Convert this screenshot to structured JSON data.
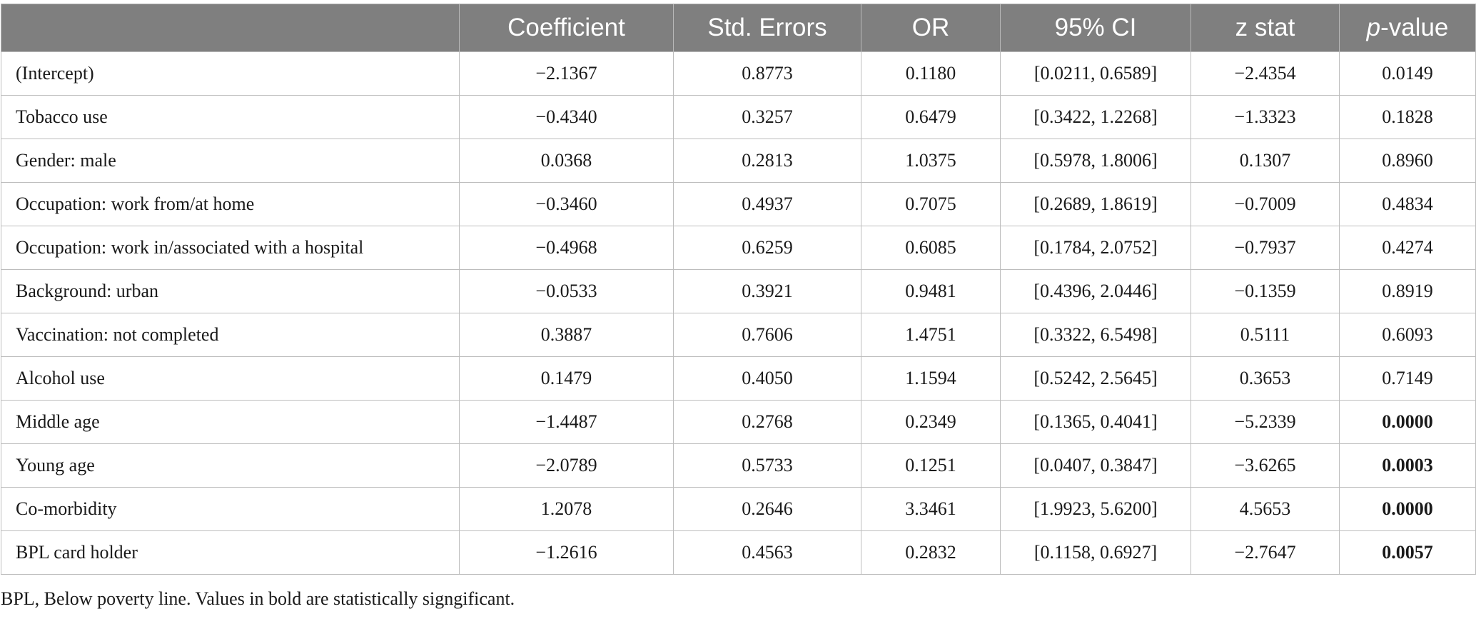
{
  "table": {
    "headers": {
      "variable": "",
      "coefficient": "Coefficient",
      "std_errors": "Std. Errors",
      "or": "OR",
      "ci": "95% CI",
      "z_stat": "z stat",
      "p_value_italic": "p",
      "p_value_rest": "-value"
    },
    "rows": [
      {
        "variable": "(Intercept)",
        "coefficient": "−2.1367",
        "std_errors": "0.8773",
        "or": "0.1180",
        "ci": "[0.0211, 0.6589]",
        "z_stat": "−2.4354",
        "p_value": "0.0149",
        "significant": false
      },
      {
        "variable": "Tobacco use",
        "coefficient": "−0.4340",
        "std_errors": "0.3257",
        "or": "0.6479",
        "ci": "[0.3422, 1.2268]",
        "z_stat": "−1.3323",
        "p_value": "0.1828",
        "significant": false
      },
      {
        "variable": "Gender: male",
        "coefficient": "0.0368",
        "std_errors": "0.2813",
        "or": "1.0375",
        "ci": "[0.5978, 1.8006]",
        "z_stat": "0.1307",
        "p_value": "0.8960",
        "significant": false
      },
      {
        "variable": "Occupation: work from/at home",
        "coefficient": "−0.3460",
        "std_errors": "0.4937",
        "or": "0.7075",
        "ci": "[0.2689, 1.8619]",
        "z_stat": "−0.7009",
        "p_value": "0.4834",
        "significant": false
      },
      {
        "variable": "Occupation: work in/associated with a hospital",
        "coefficient": "−0.4968",
        "std_errors": "0.6259",
        "or": "0.6085",
        "ci": "[0.1784, 2.0752]",
        "z_stat": "−0.7937",
        "p_value": "0.4274",
        "significant": false
      },
      {
        "variable": "Background: urban",
        "coefficient": "−0.0533",
        "std_errors": "0.3921",
        "or": "0.9481",
        "ci": "[0.4396, 2.0446]",
        "z_stat": "−0.1359",
        "p_value": "0.8919",
        "significant": false
      },
      {
        "variable": "Vaccination: not completed",
        "coefficient": "0.3887",
        "std_errors": "0.7606",
        "or": "1.4751",
        "ci": "[0.3322, 6.5498]",
        "z_stat": "0.5111",
        "p_value": "0.6093",
        "significant": false
      },
      {
        "variable": "Alcohol use",
        "coefficient": "0.1479",
        "std_errors": "0.4050",
        "or": "1.1594",
        "ci": "[0.5242, 2.5645]",
        "z_stat": "0.3653",
        "p_value": "0.7149",
        "significant": false
      },
      {
        "variable": "Middle age",
        "coefficient": "−1.4487",
        "std_errors": "0.2768",
        "or": "0.2349",
        "ci": "[0.1365, 0.4041]",
        "z_stat": "−5.2339",
        "p_value": "0.0000",
        "significant": true
      },
      {
        "variable": "Young age",
        "coefficient": "−2.0789",
        "std_errors": "0.5733",
        "or": "0.1251",
        "ci": "[0.0407, 0.3847]",
        "z_stat": "−3.6265",
        "p_value": "0.0003",
        "significant": true
      },
      {
        "variable": "Co-morbidity",
        "coefficient": "1.2078",
        "std_errors": "0.2646",
        "or": "3.3461",
        "ci": "[1.9923, 5.6200]",
        "z_stat": "4.5653",
        "p_value": "0.0000",
        "significant": true
      },
      {
        "variable": "BPL card holder",
        "coefficient": "−1.2616",
        "std_errors": "0.4563",
        "or": "0.2832",
        "ci": "[0.1158, 0.6927]",
        "z_stat": "−2.7647",
        "p_value": "0.0057",
        "significant": true
      }
    ]
  },
  "footnote": "BPL, Below poverty line. Values in bold are statistically signgificant.",
  "colors": {
    "header_bg": "#7f7f7f",
    "header_text": "#ffffff",
    "border": "#bdbdbd"
  }
}
